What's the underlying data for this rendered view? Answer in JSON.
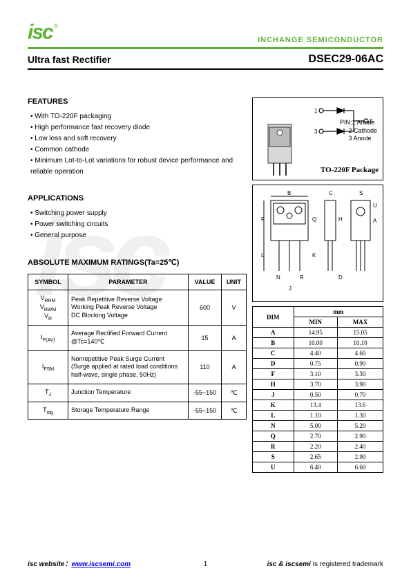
{
  "header": {
    "logo_text": "isc",
    "logo_r": "®",
    "brand": "INCHANGE SEMICONDUCTOR",
    "title_left": "Ultra fast Rectifier",
    "title_right": "DSEC29-06AC"
  },
  "features": {
    "title": "FEATURES",
    "items": [
      "With TO-220F packaging",
      "High performance fast recovery diode",
      "Low loss and soft recovery",
      "Common cathode",
      "Minimum Lot-to-Lot variations for robust device performance and reliable operation"
    ]
  },
  "applications": {
    "title": "APPLICATIONS",
    "items": [
      "Switching power supply",
      "Power switching circuits",
      "General purpose"
    ]
  },
  "ratings": {
    "title": "ABSOLUTE MAXIMUM RATINGS(Ta=25℃)",
    "columns": [
      "SYMBOL",
      "PARAMETER",
      "VALUE",
      "UNIT"
    ],
    "rows": [
      {
        "symbol_html": "V<sub>RRM</sub><br>V<sub>RWM</sub><br>V<sub>R</sub>",
        "param": "Peak Repetitive Reverse Voltage\nWorking Peak Reverse Voltage\nDC Blocking Voltage",
        "value": "600",
        "unit": "V"
      },
      {
        "symbol_html": "I<sub>F(AV)</sub>",
        "param": "Average Rectified Forward Current\n@Tc=140℃",
        "value": "15",
        "unit": "A"
      },
      {
        "symbol_html": "I<sub>FSM</sub>",
        "param": "Nonrepetitive Peak Surge Current\n(Surge applied at rated load conditions half-wave, single phase, 50Hz)",
        "value": "110",
        "unit": "A"
      },
      {
        "symbol_html": "T<sub>J</sub>",
        "param": "Junction Temperature",
        "value": "-55~150",
        "unit": "℃"
      },
      {
        "symbol_html": "T<sub>stg</sub>",
        "param": "Storage Temperature Range",
        "value": "-55~150",
        "unit": "℃"
      }
    ]
  },
  "pinout": {
    "label": "PIN:",
    "pins": [
      "1 Anode",
      "2 Cathode",
      "3 Anode"
    ],
    "package": "TO-220F Package",
    "pin_numbers": "1 2 3"
  },
  "dimensions": {
    "header": "mm",
    "columns": [
      "DIM",
      "MIN",
      "MAX"
    ],
    "rows": [
      [
        "A",
        "14.95",
        "15.05"
      ],
      [
        "B",
        "10.00",
        "10.10"
      ],
      [
        "C",
        "4.40",
        "4.60"
      ],
      [
        "D",
        "0.75",
        "0.90"
      ],
      [
        "F",
        "3.10",
        "3.30"
      ],
      [
        "H",
        "3.70",
        "3.90"
      ],
      [
        "J",
        "0.50",
        "0.70"
      ],
      [
        "K",
        "13.4",
        "13.6"
      ],
      [
        "L",
        "1.10",
        "1.30"
      ],
      [
        "N",
        "5.00",
        "5.20"
      ],
      [
        "Q",
        "2.70",
        "2.90"
      ],
      [
        "R",
        "2.20",
        "2.40"
      ],
      [
        "S",
        "2.65",
        "2.90"
      ],
      [
        "U",
        "6.40",
        "6.60"
      ]
    ]
  },
  "footer": {
    "left_label": "isc website：",
    "left_url": "www.iscsemi.com",
    "page": "1",
    "right_bold": "isc & iscsemi",
    "right_text": " is registered trademark"
  },
  "watermark": "isc"
}
